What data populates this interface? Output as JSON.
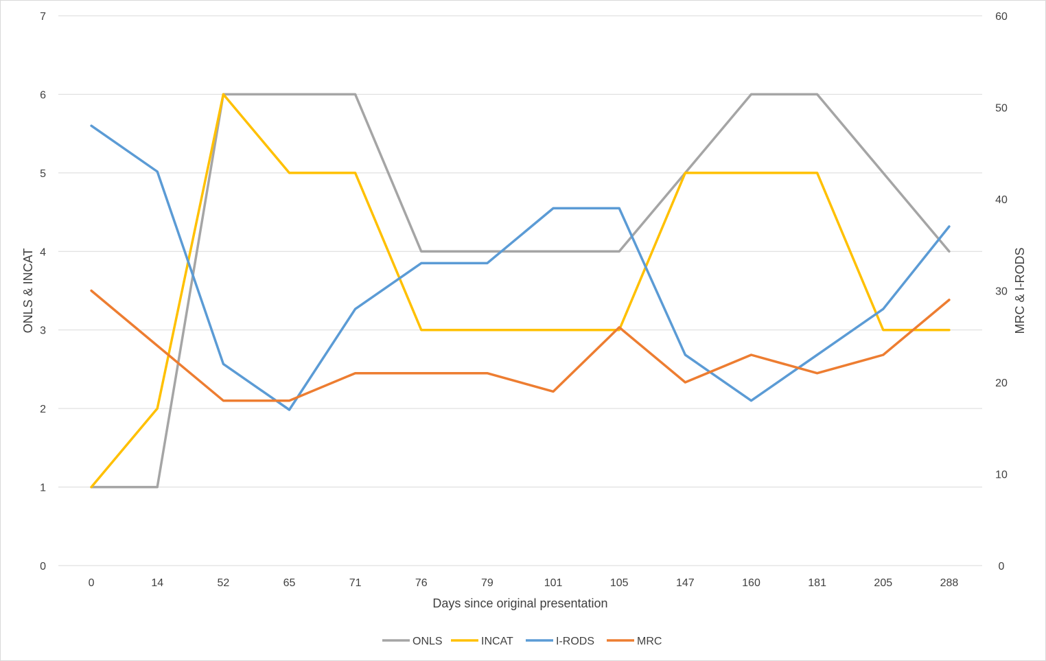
{
  "chart_data": {
    "type": "line",
    "title": "",
    "xlabel": "Days since original presentation",
    "ylabel_left": "ONLS & INCAT",
    "ylabel_right": "MRC & I-RODS",
    "categories": [
      "0",
      "14",
      "52",
      "65",
      "71",
      "76",
      "79",
      "101",
      "105",
      "147",
      "160",
      "181",
      "205",
      "288"
    ],
    "ylim_left": [
      0,
      7
    ],
    "ylim_right": [
      0,
      60
    ],
    "yticks_left": [
      0,
      1,
      2,
      3,
      4,
      5,
      6,
      7
    ],
    "yticks_right": [
      0,
      10,
      20,
      30,
      40,
      50,
      60
    ],
    "grid": true,
    "legend_position": "bottom",
    "series": [
      {
        "name": "ONLS",
        "axis": "left",
        "color": "#a5a5a5",
        "values": [
          1,
          1,
          6,
          6,
          6,
          4,
          4,
          4,
          4,
          5,
          6,
          6,
          5,
          4
        ]
      },
      {
        "name": "INCAT",
        "axis": "left",
        "color": "#ffc000",
        "values": [
          1,
          2,
          6,
          5,
          5,
          3,
          3,
          3,
          3,
          5,
          5,
          5,
          3,
          3
        ]
      },
      {
        "name": "I-RODS",
        "axis": "right",
        "color": "#5b9bd5",
        "values": [
          48,
          43,
          22,
          17,
          28,
          33,
          33,
          39,
          39,
          23,
          18,
          23,
          28,
          37
        ]
      },
      {
        "name": "MRC",
        "axis": "right",
        "color": "#ed7d31",
        "values": [
          30,
          24,
          18,
          18,
          21,
          21,
          21,
          19,
          26,
          20,
          23,
          21,
          23,
          29
        ]
      }
    ]
  }
}
